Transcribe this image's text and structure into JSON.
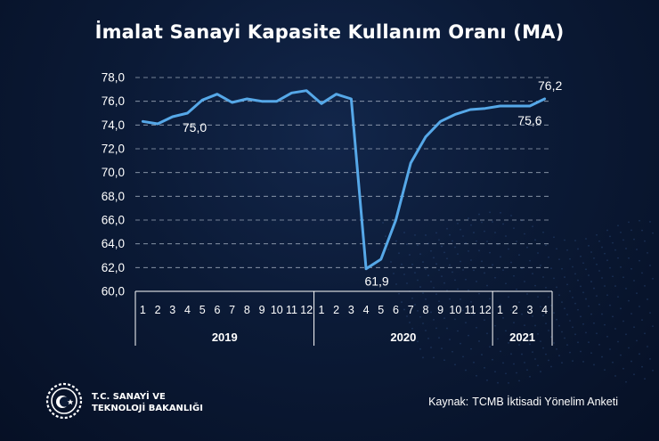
{
  "title": "İmalat Sanayi Kapasite Kullanım Oranı (MA)",
  "colors": {
    "line": "#56a8e8",
    "text": "#ffffff",
    "grid": "#c8d2e0"
  },
  "chart_data": {
    "type": "line",
    "title": "İmalat Sanayi Kapasite Kullanım Oranı (MA)",
    "xlabel": "",
    "ylabel": "",
    "ylim": [
      60,
      78
    ],
    "yticks": [
      "60,0",
      "62,0",
      "64,0",
      "66,0",
      "68,0",
      "70,0",
      "72,0",
      "74,0",
      "76,0",
      "78,0"
    ],
    "grid": "horizontal dashed",
    "categories": [
      "1",
      "2",
      "3",
      "4",
      "5",
      "6",
      "7",
      "8",
      "9",
      "10",
      "11",
      "12",
      "1",
      "2",
      "3",
      "4",
      "5",
      "6",
      "7",
      "8",
      "9",
      "10",
      "11",
      "12",
      "1",
      "2",
      "3",
      "4"
    ],
    "year_groups": [
      {
        "label": "2019",
        "count": 12
      },
      {
        "label": "2020",
        "count": 12
      },
      {
        "label": "2021",
        "count": 4
      }
    ],
    "series": [
      {
        "values": [
          74.3,
          74.1,
          74.7,
          75.0,
          76.1,
          76.6,
          75.9,
          76.2,
          76.0,
          76.0,
          76.7,
          76.9,
          75.8,
          76.6,
          76.2,
          61.9,
          62.7,
          66.0,
          70.8,
          73.0,
          74.3,
          74.9,
          75.3,
          75.4,
          75.6,
          75.6,
          75.6,
          76.2
        ]
      }
    ],
    "annotations": [
      {
        "index": 3,
        "text": "75,0"
      },
      {
        "index": 15,
        "text": "61,9"
      },
      {
        "index": 26,
        "text": "75,6"
      },
      {
        "index": 27,
        "text": "76,2"
      }
    ]
  },
  "footer": {
    "ministry_line1": "T.C. SANAYİ VE",
    "ministry_line2": "TEKNOLOJİ BAKANLIĞI",
    "source_label": "Kaynak:",
    "source_text": "TCMB İktisadi Yönelim Anketi"
  }
}
